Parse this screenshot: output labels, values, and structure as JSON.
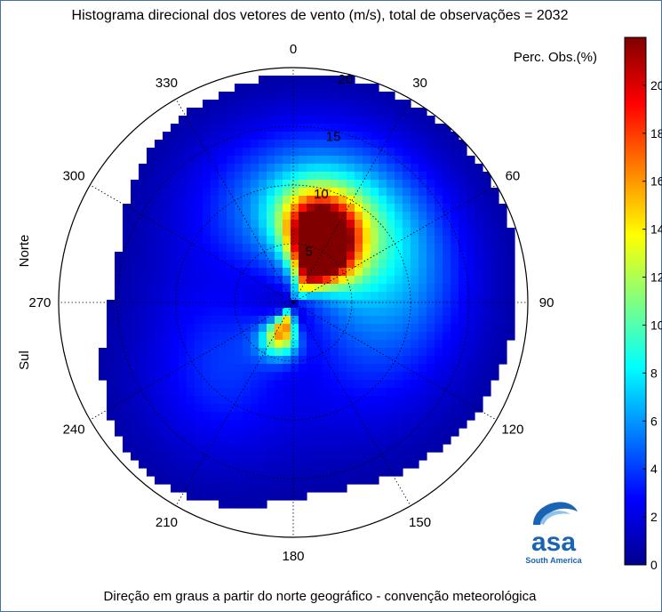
{
  "title": "Histograma direcional dos vetores de vento (m/s), total de observações = 2032",
  "footer": "Direção em graus a partir do norte geográfico - convenção meteorológica",
  "colorbar_label": "Perc. Obs.(%)",
  "side_labels": {
    "north": "Norte",
    "south": "Sul"
  },
  "logo": {
    "name": "asa",
    "subtitle": "South America"
  },
  "colors": {
    "ramp": [
      "#00008f",
      "#0000ff",
      "#0080ff",
      "#00ffff",
      "#80ff80",
      "#ffff00",
      "#ff8000",
      "#ff0000",
      "#800000"
    ],
    "logo_blue": "#1a64b4"
  },
  "chart_data": {
    "type": "heatmap",
    "subtype": "polar wind direction histogram",
    "total_observations": 2032,
    "direction_unit": "degrees from geographic north",
    "speed_unit": "m/s",
    "angle_tick_labels": [
      "0",
      "30",
      "60",
      "90",
      "120",
      "150",
      "180",
      "210",
      "240",
      "270",
      "300",
      "330"
    ],
    "radial_tick_labels": [
      "5",
      "10",
      "15",
      "20"
    ],
    "radial_range": [
      0,
      20
    ],
    "colorbar_range": [
      0,
      22
    ],
    "colorbar_ticks": [
      "0",
      "2",
      "4",
      "6",
      "8",
      "10",
      "12",
      "14",
      "16",
      "18",
      "20"
    ],
    "grid": true,
    "blobs": [
      {
        "dir": 20,
        "speed": 6,
        "spread_deg": 18,
        "spread_speed": 2.5,
        "peak_pct": 21
      },
      {
        "dir": 40,
        "speed": 4,
        "spread_deg": 20,
        "spread_speed": 2,
        "peak_pct": 14
      },
      {
        "dir": 200,
        "speed": 2.5,
        "spread_deg": 18,
        "spread_speed": 1.5,
        "peak_pct": 15
      },
      {
        "dir": 35,
        "speed": 8,
        "spread_deg": 40,
        "spread_speed": 5,
        "peak_pct": 8
      },
      {
        "dir": 110,
        "speed": 6,
        "spread_deg": 50,
        "spread_speed": 6,
        "peak_pct": 4
      },
      {
        "dir": 220,
        "speed": 8,
        "spread_deg": 25,
        "spread_speed": 6,
        "peak_pct": 3
      },
      {
        "dir": 330,
        "speed": 6,
        "spread_deg": 30,
        "spread_speed": 6,
        "peak_pct": 3
      },
      {
        "dir": 260,
        "speed": 6,
        "spread_deg": 25,
        "spread_speed": 5,
        "peak_pct": 2
      }
    ]
  }
}
